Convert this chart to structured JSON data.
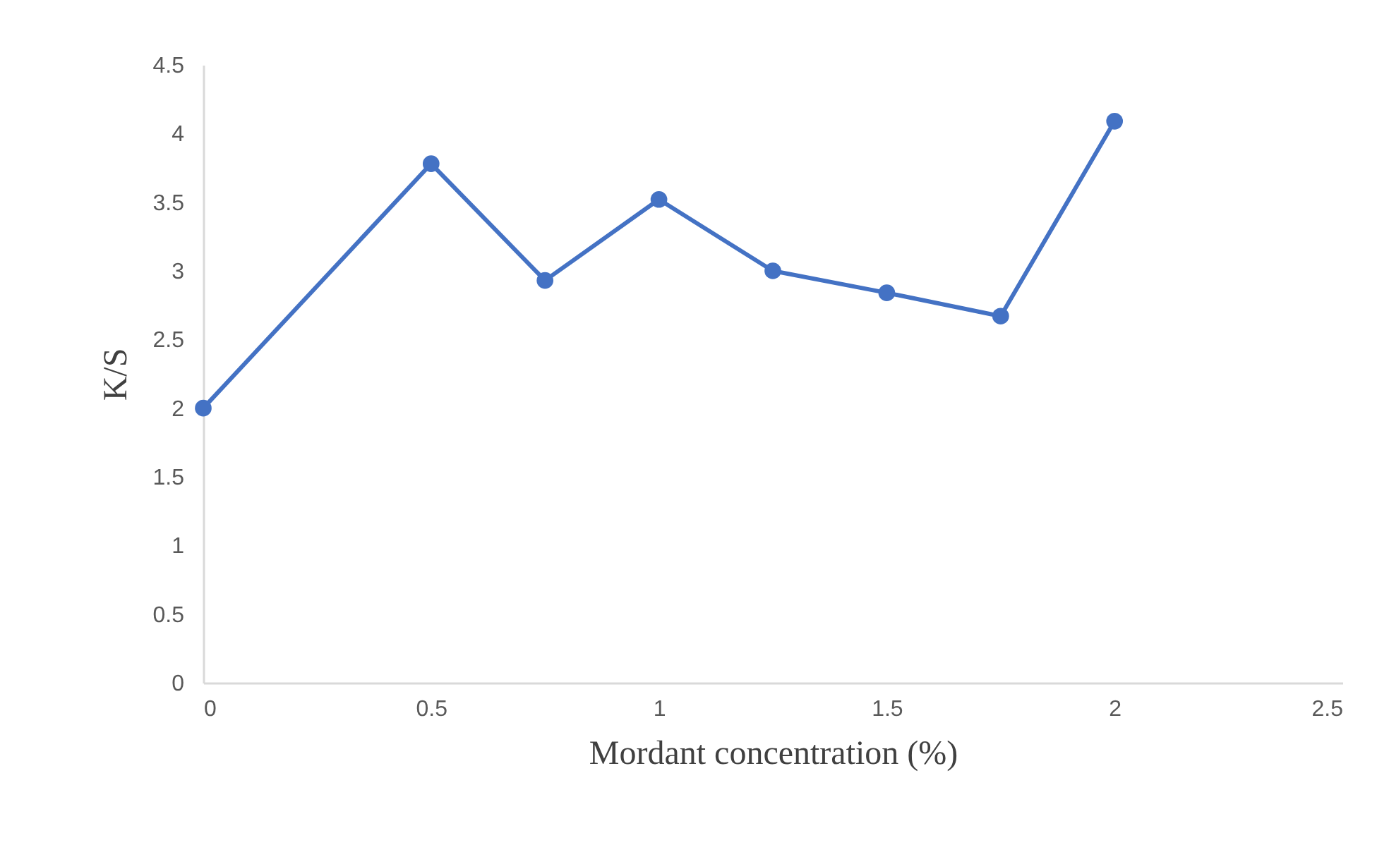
{
  "chart_data": {
    "type": "line",
    "xlabel": "Mordant concentration (%)",
    "ylabel": "K/S",
    "x": [
      0,
      0.5,
      0.75,
      1,
      1.25,
      1.5,
      1.75,
      2
    ],
    "series": [
      {
        "color": "#4472c4",
        "values": [
          2.0,
          3.78,
          2.93,
          3.52,
          3.0,
          2.84,
          2.67,
          4.09
        ]
      }
    ],
    "xlim": [
      0,
      2.5
    ],
    "xticks": [
      0,
      0.5,
      1,
      1.5,
      2,
      2.5
    ],
    "ylim": [
      0,
      4.5
    ],
    "yticks": [
      0,
      0.5,
      1,
      1.5,
      2,
      2.5,
      3,
      3.5,
      4,
      4.5
    ],
    "grid": false,
    "marker": "circle",
    "line_style": "solid"
  }
}
